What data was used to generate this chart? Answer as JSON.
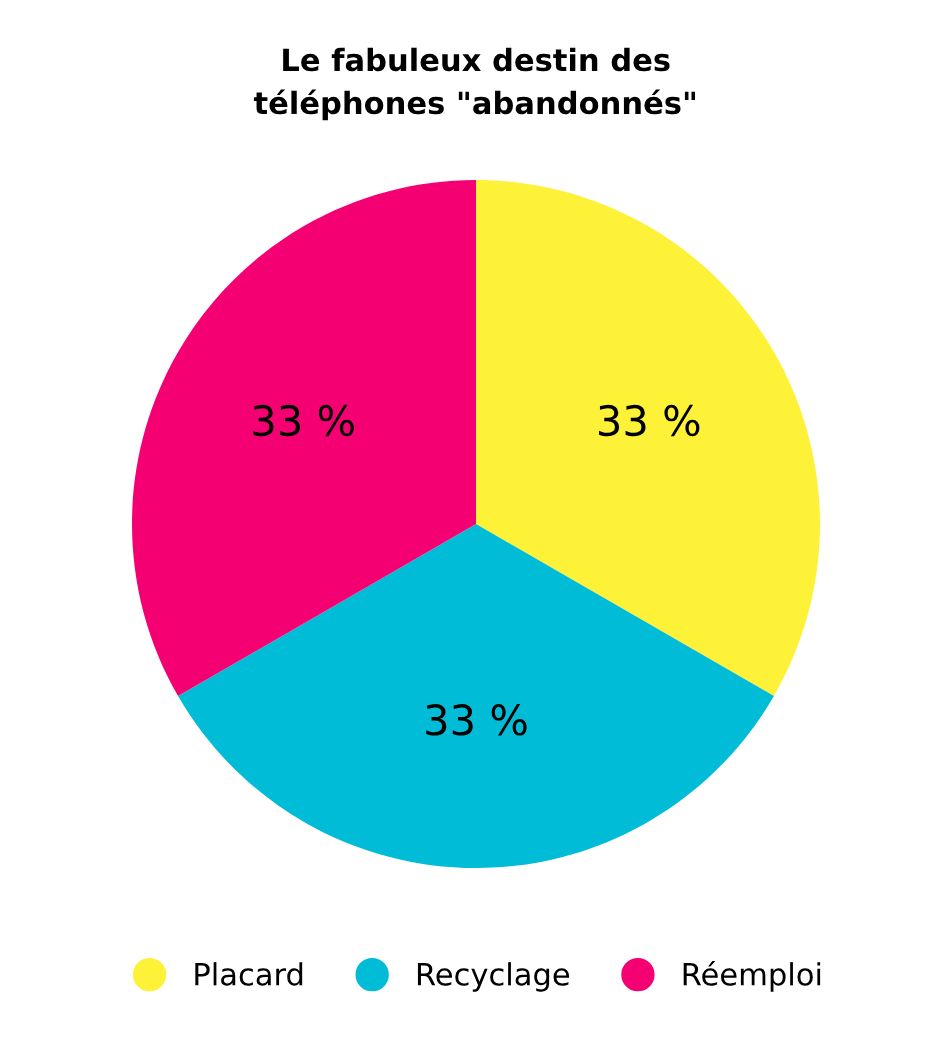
{
  "chart_data": {
    "type": "pie",
    "title": "Le fabuleux destin des\ntéléphones \"abandonnés\"",
    "categories": [
      "Placard",
      "Recyclage",
      "Réemploi"
    ],
    "values": [
      33,
      33,
      33
    ],
    "value_labels": [
      "33 %",
      "33 %",
      "33 %"
    ],
    "colors": [
      "#fdf237",
      "#00bcd6",
      "#f50072"
    ],
    "legend": "bottom"
  }
}
